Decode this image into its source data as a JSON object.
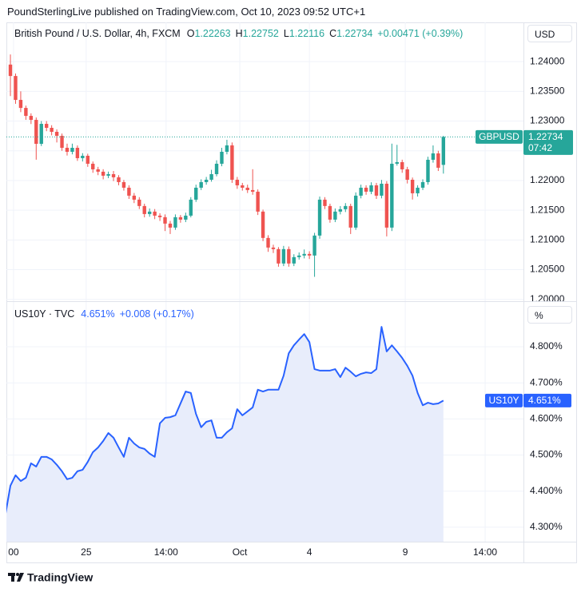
{
  "header": "PoundSterlingLive published on TradingView.com, Oct 10, 2023 09:52 UTC+1",
  "footer": "TradingView",
  "chart_data": [
    {
      "type": "candlestick",
      "legend": {
        "name": "British Pound / U.S. Dollar, 4h, FXCM",
        "ohlc": [
          {
            "key": "O",
            "value": 1.22263
          },
          {
            "key": "H",
            "value": 1.22752
          },
          {
            "key": "L",
            "value": 1.22116
          },
          {
            "key": "C",
            "value": 1.22734
          }
        ],
        "change": "+0.00471 (+0.39%)"
      },
      "currency": "USD",
      "up_color": "#26a69a",
      "down_color": "#ef5350",
      "x": [
        0,
        1,
        2,
        3,
        4,
        5,
        6,
        7,
        8,
        9,
        10,
        11,
        12,
        13,
        14,
        15,
        16,
        17,
        18,
        19,
        20,
        21,
        22,
        23,
        24,
        25,
        26,
        27,
        28,
        29,
        30,
        31,
        32,
        33,
        34,
        35,
        36,
        37,
        38,
        39,
        40,
        41,
        42,
        43,
        44,
        45,
        46,
        47,
        48,
        49,
        50,
        51,
        52,
        53,
        54,
        55,
        56,
        57,
        58,
        59,
        60,
        61,
        62,
        63,
        64,
        65,
        66,
        67,
        68,
        69,
        70,
        71,
        72,
        73,
        74,
        75,
        76,
        77,
        78,
        79,
        80,
        81,
        82,
        83,
        84
      ],
      "open": [
        1.2395,
        1.23758,
        1.23356,
        1.23221,
        1.23087,
        1.2302,
        1.22617,
        1.22953,
        1.22886,
        1.22819,
        1.22752,
        1.2255,
        1.22483,
        1.2255,
        1.22376,
        1.22416,
        1.22282,
        1.22188,
        1.22148,
        1.22081,
        1.22107,
        1.22054,
        1.21973,
        1.21879,
        1.21745,
        1.21678,
        1.21571,
        1.21436,
        1.21477,
        1.21409,
        1.21383,
        1.21275,
        1.21208,
        1.21383,
        1.21342,
        1.21409,
        1.21678,
        1.21879,
        1.21973,
        1.22013,
        1.22107,
        1.22282,
        1.22483,
        1.22591,
        1.22013,
        1.21919,
        1.21879,
        1.21839,
        1.21812,
        1.21477,
        1.21034,
        1.20872,
        1.20846,
        1.20604,
        1.20846,
        1.20604,
        1.20711,
        1.20738,
        1.20765,
        1.20738,
        1.21074,
        1.21678,
        1.21571,
        1.21342,
        1.21477,
        1.21517,
        1.21571,
        1.21208,
        1.21745,
        1.21879,
        1.21812,
        1.21919,
        1.21745,
        1.21946,
        1.21208,
        1.22282,
        1.22309,
        1.22188,
        1.22013,
        1.21785,
        1.21879,
        1.21973,
        1.22349,
        1.22456,
        1.22263
      ],
      "high": [
        1.2412,
        1.238,
        1.235,
        1.2326,
        1.2313,
        1.2306,
        1.23,
        1.23,
        1.2293,
        1.2286,
        1.2279,
        1.2262,
        1.2262,
        1.2259,
        1.2246,
        1.2245,
        1.2232,
        1.2223,
        1.2219,
        1.2215,
        1.2216,
        1.2209,
        1.2201,
        1.2192,
        1.2179,
        1.2172,
        1.2161,
        1.2153,
        1.2152,
        1.2145,
        1.2143,
        1.2132,
        1.2143,
        1.2142,
        1.2146,
        1.2172,
        1.2193,
        1.2202,
        1.2206,
        1.2218,
        1.2234,
        1.2255,
        1.22685,
        1.2264,
        1.2206,
        1.2196,
        1.2193,
        1.2219,
        1.2185,
        1.2151,
        1.2108,
        1.2092,
        1.2088,
        1.209,
        1.2089,
        1.2076,
        1.2079,
        1.2084,
        1.2081,
        1.2112,
        1.2173,
        1.2172,
        1.2161,
        1.2153,
        1.2157,
        1.2162,
        1.2161,
        1.218,
        1.2193,
        1.2192,
        1.2197,
        1.2196,
        1.2201,
        1.2199,
        1.2262,
        1.226,
        1.2235,
        1.2223,
        1.2205,
        1.2192,
        1.2202,
        1.224,
        1.2259,
        1.225,
        1.22752
      ],
      "low": [
        1.2342,
        1.2329,
        1.2315,
        1.2302,
        1.2295,
        1.2235,
        1.2258,
        1.2283,
        1.2276,
        1.2264,
        1.225,
        1.2242,
        1.2244,
        1.2233,
        1.2232,
        1.2223,
        1.2213,
        1.2209,
        1.2202,
        1.2204,
        1.2199,
        1.2192,
        1.2183,
        1.2169,
        1.2162,
        1.2152,
        1.2138,
        1.2139,
        1.2135,
        1.2132,
        1.2115,
        1.211,
        1.2117,
        1.2129,
        1.213,
        1.2138,
        1.2164,
        1.2184,
        1.2193,
        1.2198,
        1.2207,
        1.2224,
        1.2244,
        1.2196,
        1.2186,
        1.2183,
        1.2179,
        1.2176,
        1.2142,
        1.2098,
        1.208,
        1.2078,
        1.2055,
        1.2056,
        1.2055,
        1.2056,
        1.2067,
        1.2069,
        1.2068,
        1.2038,
        1.2102,
        1.2152,
        1.2129,
        1.213,
        1.2143,
        1.2147,
        1.211,
        1.2117,
        1.217,
        1.2176,
        1.2177,
        1.2169,
        1.217,
        1.2106,
        1.2115,
        1.2225,
        1.2213,
        1.2195,
        1.2168,
        1.2173,
        1.2184,
        1.2193,
        1.223,
        1.2216,
        1.22116
      ],
      "close": [
        1.23758,
        1.23356,
        1.23221,
        1.23087,
        1.2302,
        1.22617,
        1.22953,
        1.22886,
        1.22819,
        1.22752,
        1.2255,
        1.22483,
        1.2255,
        1.22376,
        1.22416,
        1.22282,
        1.22188,
        1.22148,
        1.22081,
        1.22107,
        1.22054,
        1.21973,
        1.21879,
        1.21745,
        1.21678,
        1.21571,
        1.21436,
        1.21477,
        1.21409,
        1.21383,
        1.21275,
        1.21208,
        1.21383,
        1.21342,
        1.21409,
        1.21678,
        1.21879,
        1.21973,
        1.22013,
        1.22107,
        1.22282,
        1.22483,
        1.22591,
        1.22013,
        1.21919,
        1.21879,
        1.21839,
        1.21812,
        1.21477,
        1.21034,
        1.20872,
        1.20846,
        1.20604,
        1.20846,
        1.20604,
        1.20711,
        1.20738,
        1.20765,
        1.20738,
        1.21074,
        1.21678,
        1.21571,
        1.21342,
        1.21477,
        1.21517,
        1.21571,
        1.21208,
        1.21745,
        1.21879,
        1.21812,
        1.21919,
        1.21745,
        1.21946,
        1.21208,
        1.22282,
        1.22309,
        1.22188,
        1.22013,
        1.21785,
        1.21879,
        1.21973,
        1.22349,
        1.22456,
        1.22215,
        1.22734
      ],
      "price_label": {
        "symbol": "GBPUSD",
        "value": 1.22734,
        "countdown": "07:42"
      },
      "xlim": [
        -0.78,
        99.53
      ],
      "ylim": [
        1.1997,
        1.2466
      ],
      "yticks": [
        {
          "value": 1.2,
          "label": "1.20000"
        },
        {
          "value": 1.205,
          "label": "1.20500"
        },
        {
          "value": 1.21,
          "label": "1.21000"
        },
        {
          "value": 1.215,
          "label": "1.21500"
        },
        {
          "value": 1.22,
          "label": "1.22000"
        },
        {
          "value": 1.225,
          "label": "1.22500"
        },
        {
          "value": 1.23,
          "label": "1.23000"
        },
        {
          "value": 1.235,
          "label": "1.23500"
        },
        {
          "value": 1.24,
          "label": "1.24000"
        }
      ],
      "grid": true
    },
    {
      "type": "line",
      "legend": {
        "name": "US10Y · TVC",
        "value": "4.651%",
        "change": "+0.008 (+0.17%)"
      },
      "unit": "%",
      "color": "#2962ff",
      "area_color": "#e8edfb",
      "x": [
        -1,
        0,
        1,
        2,
        3,
        4,
        5,
        6,
        7,
        8,
        9,
        10,
        11,
        12,
        13,
        14,
        15,
        16,
        17,
        18,
        19,
        20,
        21,
        22,
        23,
        24,
        25,
        26,
        27,
        28,
        29,
        30,
        31,
        32,
        33,
        34,
        35,
        36,
        37,
        38,
        39,
        40,
        41,
        42,
        43,
        44,
        45,
        46,
        47,
        48,
        49,
        50,
        51,
        52,
        53,
        54,
        55,
        56,
        57,
        58,
        59,
        60,
        61,
        62,
        63,
        64,
        65,
        66,
        67,
        68,
        69,
        70,
        71,
        72,
        73,
        74,
        75,
        76,
        77,
        78,
        79,
        80,
        81,
        82,
        83,
        84
      ],
      "values": [
        4.333,
        4.415,
        4.444,
        4.428,
        4.437,
        4.477,
        4.468,
        4.495,
        4.495,
        4.488,
        4.473,
        4.455,
        4.433,
        4.437,
        4.455,
        4.459,
        4.481,
        4.508,
        4.521,
        4.539,
        4.561,
        4.548,
        4.521,
        4.495,
        4.548,
        4.532,
        4.521,
        4.517,
        4.504,
        4.495,
        4.588,
        4.603,
        4.605,
        4.61,
        4.643,
        4.676,
        4.672,
        4.614,
        4.577,
        4.592,
        4.596,
        4.548,
        4.548,
        4.563,
        4.574,
        4.627,
        4.61,
        4.621,
        4.632,
        4.681,
        4.676,
        4.681,
        4.681,
        4.681,
        4.72,
        4.782,
        4.804,
        4.82,
        4.835,
        4.813,
        4.738,
        4.734,
        4.734,
        4.734,
        4.738,
        4.716,
        4.742,
        4.731,
        4.718,
        4.725,
        4.729,
        4.727,
        4.738,
        4.855,
        4.787,
        4.804,
        4.787,
        4.769,
        4.747,
        4.72,
        4.672,
        4.638,
        4.645,
        4.641,
        4.643,
        4.651
      ],
      "price_label": {
        "symbol": "US10Y",
        "value": 4.651,
        "label": "4.651%"
      },
      "xlim": [
        -0.78,
        99.53
      ],
      "xticks": [
        {
          "value": 0.6,
          "label": "00"
        },
        {
          "value": 14.7,
          "label": "25"
        },
        {
          "value": 30.2,
          "label": "14:00"
        },
        {
          "value": 44.5,
          "label": "Oct"
        },
        {
          "value": 58,
          "label": "4"
        },
        {
          "value": 76.6,
          "label": "9"
        },
        {
          "value": 92.1,
          "label": "14:00"
        }
      ],
      "ylim": [
        4.26,
        4.924
      ],
      "yticks": [
        {
          "value": 4.3,
          "label": "4.300%"
        },
        {
          "value": 4.4,
          "label": "4.400%"
        },
        {
          "value": 4.5,
          "label": "4.500%"
        },
        {
          "value": 4.6,
          "label": "4.600%"
        },
        {
          "value": 4.7,
          "label": "4.700%"
        },
        {
          "value": 4.8,
          "label": "4.800%"
        }
      ],
      "grid": true
    }
  ]
}
